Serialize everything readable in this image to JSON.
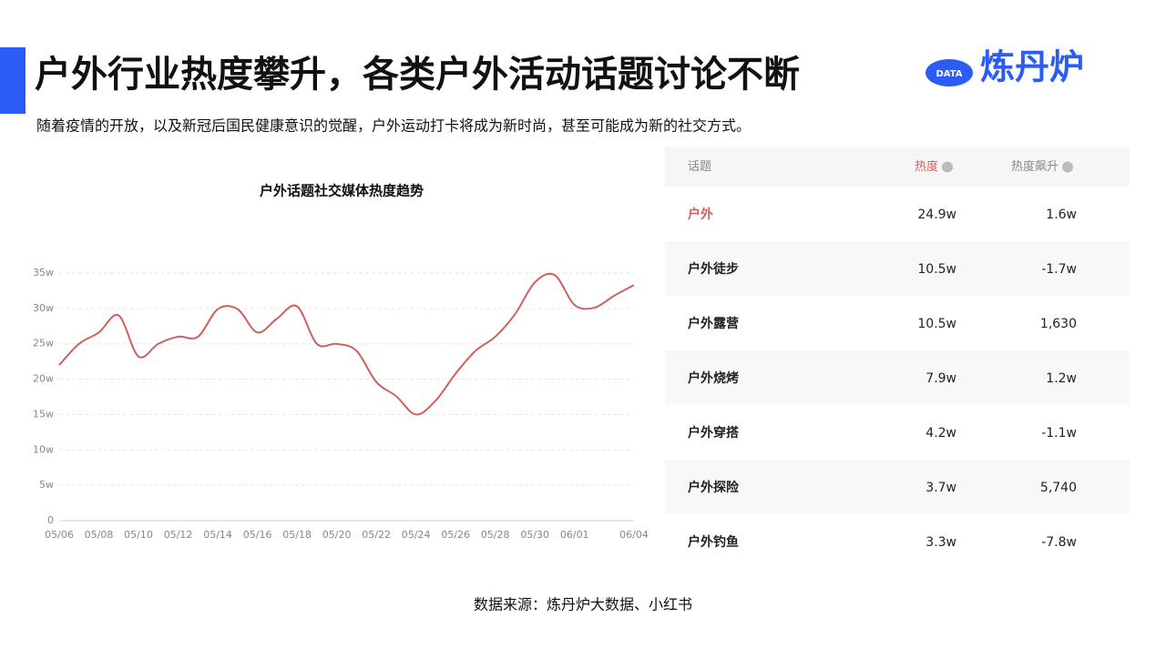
{
  "header": {
    "title": "户外行业热度攀升，各类户外活动话题讨论不断",
    "subtitle": "随着疫情的开放，以及新冠后国民健康意识的觉醒，户外运动打卡将成为新时尚，甚至可能成为新的社交方式。",
    "logo_badge": "DATA",
    "logo_text": "炼丹炉"
  },
  "chart_data": {
    "type": "line",
    "title": "户外话题社交媒体热度趋势",
    "categories": [
      "05/06",
      null,
      "05/08",
      null,
      "05/10",
      null,
      "05/12",
      null,
      "05/14",
      null,
      "05/16",
      null,
      "05/18",
      null,
      "05/20",
      null,
      "05/22",
      null,
      "05/24",
      null,
      "05/26",
      null,
      "05/28",
      null,
      "05/30",
      null,
      "06/01",
      null,
      null,
      "06/04"
    ],
    "series": [
      {
        "name": "热度",
        "color": "#d0605e",
        "values": [
          22,
          25,
          26.6,
          29,
          23.2,
          25,
          26,
          26,
          29.9,
          29.9,
          26.6,
          28.6,
          30.3,
          25,
          25,
          24,
          19.6,
          17.6,
          15,
          17,
          20.8,
          24,
          26,
          29.2,
          33.7,
          34.7,
          30.5,
          30.1,
          31.8,
          33.3
        ]
      }
    ],
    "ylim": [
      0,
      35
    ],
    "yticks": [
      0,
      {
        "value": 5,
        "label": "5w"
      },
      {
        "value": 10,
        "label": "10w"
      },
      {
        "value": 15,
        "label": "15w"
      },
      {
        "value": 20,
        "label": "20w"
      },
      {
        "value": 25,
        "label": "25w"
      },
      {
        "value": 30,
        "label": "30w"
      },
      {
        "value": 35,
        "label": "35w"
      }
    ],
    "grid": true
  },
  "table": {
    "columns": [
      "话题",
      "热度",
      "热度飙升"
    ],
    "rows": [
      [
        "户外",
        "24.9w",
        "1.6w"
      ],
      [
        "户外徒步",
        "10.5w",
        "-1.7w"
      ],
      [
        "户外露营",
        "10.5w",
        "1,630"
      ],
      [
        "户外烧烤",
        "7.9w",
        "1.2w"
      ],
      [
        "户外穿搭",
        "4.2w",
        "-1.1w"
      ],
      [
        "户外探险",
        "3.7w",
        "5,740"
      ],
      [
        "户外钓鱼",
        "3.3w",
        "-7.8w"
      ]
    ]
  },
  "source": "数据来源：炼丹炉大数据、小红书"
}
